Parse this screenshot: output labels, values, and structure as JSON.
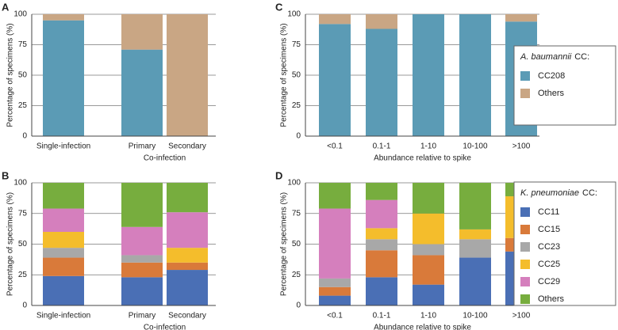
{
  "chart_data": [
    {
      "type": "stacked_bar",
      "panel": "A",
      "ylabel": "Percentage of specimens (%)",
      "categories": [
        "Single-infection",
        "Primary",
        "Secondary"
      ],
      "x_group_label": "Co-infection",
      "series": [
        {
          "name": "CC208",
          "color": "#5b9bb5",
          "values": [
            95,
            71,
            0
          ]
        },
        {
          "name": "Others",
          "color": "#c9a684",
          "values": [
            5,
            29,
            100
          ]
        }
      ],
      "ylim": [
        0,
        100
      ],
      "yticks": [
        0,
        25,
        50,
        75,
        100
      ],
      "grid": true
    },
    {
      "type": "stacked_bar",
      "panel": "B",
      "ylabel": "Percentage of specimens (%)",
      "categories": [
        "Single-infection",
        "Primary",
        "Secondary"
      ],
      "x_group_label": "Co-infection",
      "series": [
        {
          "name": "CC11",
          "color": "#4a6fb5",
          "values": [
            24,
            23,
            29
          ]
        },
        {
          "name": "CC15",
          "color": "#d97a3a",
          "values": [
            15,
            12,
            6
          ]
        },
        {
          "name": "CC23",
          "color": "#a8a8a8",
          "values": [
            8,
            6,
            0
          ]
        },
        {
          "name": "CC25",
          "color": "#f4bd2c",
          "values": [
            13,
            0,
            12
          ]
        },
        {
          "name": "CC29",
          "color": "#d57fbd",
          "values": [
            19,
            23,
            29
          ]
        },
        {
          "name": "Others",
          "color": "#77ad3e",
          "values": [
            21,
            36,
            24
          ]
        }
      ],
      "ylim": [
        0,
        100
      ],
      "yticks": [
        0,
        25,
        50,
        75,
        100
      ],
      "grid": true
    },
    {
      "type": "stacked_bar",
      "panel": "C",
      "ylabel": "Percentage of specimens (%)",
      "xlabel": "Abundance relative to spike",
      "categories": [
        "<0.1",
        "0.1-1",
        "1-10",
        "10-100",
        ">100"
      ],
      "series": [
        {
          "name": "CC208",
          "color": "#5b9bb5",
          "values": [
            92,
            88,
            100,
            100,
            94
          ]
        },
        {
          "name": "Others",
          "color": "#c9a684",
          "values": [
            8,
            12,
            0,
            0,
            6
          ]
        }
      ],
      "ylim": [
        0,
        100
      ],
      "yticks": [
        0,
        25,
        50,
        75,
        100
      ],
      "grid": true,
      "legend_species": "A. baumannii",
      "legend_suffix": "CC:"
    },
    {
      "type": "stacked_bar",
      "panel": "D",
      "ylabel": "Percentage of specimens (%)",
      "xlabel": "Abundance relative to spike",
      "categories": [
        "<0.1",
        "0.1-1",
        "1-10",
        "10-100",
        ">100"
      ],
      "series": [
        {
          "name": "CC11",
          "color": "#4a6fb5",
          "values": [
            8,
            23,
            17,
            39,
            44
          ]
        },
        {
          "name": "CC15",
          "color": "#d97a3a",
          "values": [
            7,
            22,
            24,
            0,
            11
          ]
        },
        {
          "name": "CC23",
          "color": "#a8a8a8",
          "values": [
            7,
            9,
            9,
            15,
            0
          ]
        },
        {
          "name": "CC25",
          "color": "#f4bd2c",
          "values": [
            0,
            9,
            25,
            8,
            34
          ]
        },
        {
          "name": "CC29",
          "color": "#d57fbd",
          "values": [
            57,
            23,
            0,
            0,
            0
          ]
        },
        {
          "name": "Others",
          "color": "#77ad3e",
          "values": [
            21,
            14,
            25,
            38,
            11
          ]
        }
      ],
      "ylim": [
        0,
        100
      ],
      "yticks": [
        0,
        25,
        50,
        75,
        100
      ],
      "grid": true,
      "legend_species": "K. pneumoniae",
      "legend_suffix": "CC:"
    }
  ]
}
